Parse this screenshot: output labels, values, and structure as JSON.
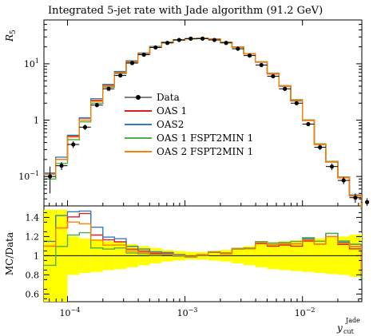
{
  "chart_data": {
    "type": "line",
    "title": "Integrated 5-jet rate with Jade algorithm (91.2 GeV)",
    "ylabel": "R",
    "ylabel_sub": "5",
    "xlabel": "y",
    "xlabel_sub": "cut",
    "xlabel_sup": "Jade",
    "ratio_ylabel": "MC/Data",
    "x_scale": "log",
    "xlim": [
      6.3e-05,
      0.032
    ],
    "y_scale": "log",
    "ylim": [
      0.03,
      60
    ],
    "ratio_ylim": [
      0.52,
      1.52
    ],
    "grid": false,
    "legend_position": "middle",
    "x_ticks": [
      {
        "exp": "-4",
        "value": 0.0001
      },
      {
        "exp": "-3",
        "value": 0.001
      },
      {
        "exp": "-2",
        "value": 0.01
      }
    ],
    "y_ticks": [
      {
        "label": "10",
        "sup": "−1",
        "value": 0.1
      },
      {
        "label": "1",
        "sup": "",
        "value": 1
      },
      {
        "label": "10",
        "sup": "1",
        "value": 10
      }
    ],
    "ratio_ticks": [
      {
        "label": "0.6",
        "value": 0.6
      },
      {
        "label": "0.8",
        "value": 0.8
      },
      {
        "label": "1",
        "value": 1.0
      },
      {
        "label": "1.2",
        "value": 1.2
      },
      {
        "label": "1.4",
        "value": 1.4
      }
    ],
    "colors": {
      "data": "#000000",
      "OAS 1": "#e41a1c",
      "OAS2": "#377eb8",
      "OAS 1 FSPT2MIN 1": "#4daf4a",
      "OAS 2 FSPT2MIN 1": "#ff7f00",
      "band": "#ffff00"
    },
    "data": {
      "name": "Data",
      "x": [
        7.1e-05,
        8.9e-05,
        0.000112,
        0.000141,
        0.000178,
        0.000224,
        0.000282,
        0.000355,
        0.000447,
        0.000562,
        0.000708,
        0.000891,
        0.00112,
        0.00141,
        0.00178,
        0.00224,
        0.00282,
        0.00355,
        0.00447,
        0.00562,
        0.00708,
        0.00891,
        0.0112,
        0.0141,
        0.0178,
        0.0224,
        0.0282,
        0.0355
      ],
      "y": [
        0.1,
        0.155,
        0.37,
        0.75,
        1.85,
        3.6,
        6.2,
        10.3,
        14.5,
        19.5,
        23.5,
        26.5,
        28.0,
        28.0,
        26.5,
        23.5,
        18.5,
        14.0,
        9.5,
        6.0,
        3.6,
        2.0,
        0.85,
        0.33,
        0.15,
        0.085,
        0.042,
        0.035
      ],
      "yerr": [
        0.05,
        0.025,
        0.05,
        0.08,
        0.15,
        0.25,
        0.4,
        0.6,
        0.8,
        0.9,
        1.0,
        1.1,
        1.1,
        1.1,
        1.1,
        1.0,
        0.9,
        0.8,
        0.6,
        0.4,
        0.25,
        0.15,
        0.07,
        0.035,
        0.02,
        0.012,
        0.008,
        0.006
      ]
    },
    "bin_edges": [
      6.3e-05,
      7.94e-05,
      0.0001,
      0.000126,
      0.000158,
      0.0002,
      0.000251,
      0.000316,
      0.000398,
      0.000501,
      0.000631,
      0.000794,
      0.001,
      0.00126,
      0.00158,
      0.002,
      0.00251,
      0.00316,
      0.00398,
      0.00501,
      0.00631,
      0.00794,
      0.01,
      0.0126,
      0.0158,
      0.02,
      0.0251,
      0.0316
    ],
    "series": [
      {
        "name": "OAS 1",
        "y": [
          0.11,
          0.2,
          0.52,
          1.08,
          2.25,
          4.2,
          7.1,
          11.0,
          15.2,
          20.0,
          24.0,
          26.5,
          27.7,
          28.2,
          27.4,
          24.0,
          19.8,
          15.0,
          10.7,
          6.6,
          4.0,
          2.2,
          0.98,
          0.37,
          0.18,
          0.095,
          0.045,
          0.03
        ]
      },
      {
        "name": "OAS2",
        "y": [
          0.115,
          0.22,
          0.54,
          1.1,
          2.4,
          4.3,
          7.3,
          11.3,
          15.5,
          20.3,
          24.3,
          26.8,
          27.9,
          28.3,
          27.5,
          24.2,
          19.9,
          15.1,
          10.8,
          6.7,
          4.05,
          2.25,
          1.0,
          0.38,
          0.185,
          0.097,
          0.047,
          0.031
        ]
      },
      {
        "name": "OAS 1 FSPT2MIN 1",
        "y": [
          0.09,
          0.17,
          0.45,
          0.93,
          2.0,
          3.85,
          6.7,
          10.6,
          14.8,
          19.6,
          23.7,
          26.4,
          27.6,
          28.1,
          27.6,
          24.2,
          19.9,
          15.1,
          10.9,
          6.8,
          4.1,
          2.3,
          1.01,
          0.38,
          0.185,
          0.098,
          0.046,
          0.026
        ]
      },
      {
        "name": "OAS 2 FSPT2MIN 1",
        "y": [
          0.11,
          0.2,
          0.5,
          1.0,
          2.15,
          4.0,
          6.9,
          10.8,
          15.0,
          19.8,
          23.9,
          26.6,
          27.8,
          28.2,
          27.5,
          24.1,
          19.8,
          15.0,
          10.8,
          6.7,
          4.05,
          2.25,
          0.99,
          0.37,
          0.18,
          0.096,
          0.046,
          0.029
        ]
      }
    ],
    "ratio_band": {
      "lo": [
        0.52,
        0.52,
        0.8,
        0.82,
        0.83,
        0.85,
        0.86,
        0.88,
        0.9,
        0.92,
        0.94,
        0.95,
        0.96,
        0.96,
        0.95,
        0.94,
        0.92,
        0.9,
        0.88,
        0.86,
        0.85,
        0.84,
        0.83,
        0.82,
        0.81,
        0.8,
        0.78,
        0.76
      ],
      "hi": [
        1.48,
        1.48,
        1.2,
        1.18,
        1.17,
        1.15,
        1.14,
        1.12,
        1.1,
        1.08,
        1.06,
        1.05,
        1.04,
        1.04,
        1.05,
        1.06,
        1.08,
        1.1,
        1.12,
        1.14,
        1.15,
        1.16,
        1.17,
        1.18,
        1.19,
        1.2,
        1.22,
        1.24
      ]
    },
    "legend_entries": [
      {
        "label": "Data",
        "key": "data"
      },
      {
        "label": "OAS 1",
        "key": "OAS 1"
      },
      {
        "label": "OAS2",
        "key": "OAS2"
      },
      {
        "label": "OAS 1 FSPT2MIN 1",
        "key": "OAS 1 FSPT2MIN 1"
      },
      {
        "label": "OAS 2 FSPT2MIN 1",
        "key": "OAS 2 FSPT2MIN 1"
      }
    ]
  }
}
